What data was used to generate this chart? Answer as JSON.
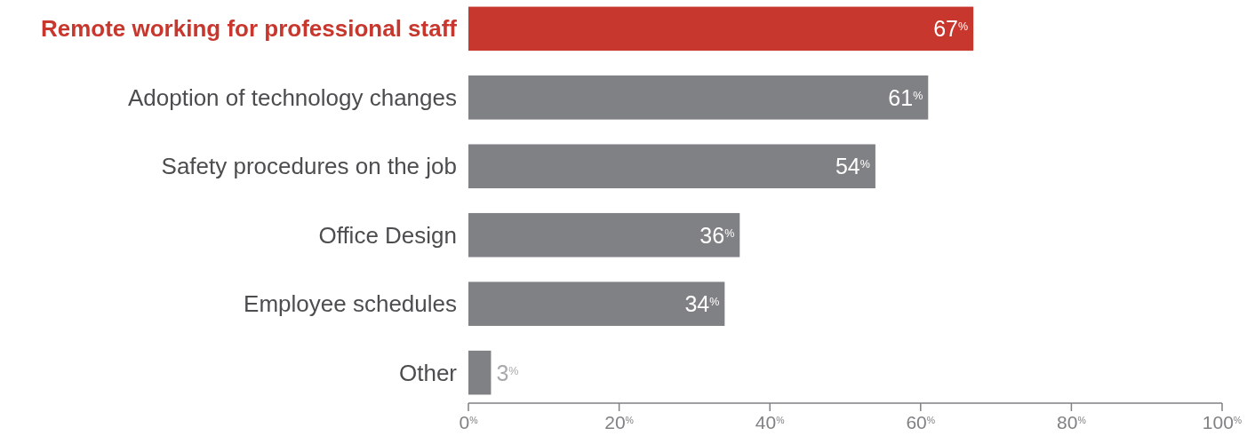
{
  "chart_data": {
    "type": "bar",
    "orientation": "horizontal",
    "categories": [
      "Remote working for professional staff",
      "Adoption of technology changes",
      "Safety procedures on the job",
      "Office Design",
      "Employee schedules",
      "Other"
    ],
    "values": [
      67,
      61,
      54,
      36,
      34,
      3
    ],
    "colors": [
      "#c8372d",
      "#808184",
      "#808184",
      "#808184",
      "#808184",
      "#808184"
    ],
    "value_labels": [
      "67$^{%}$",
      "61$^{%}$",
      "54$^{%}$",
      "36$^{%}$",
      "34$^{%}$",
      "3$^{%}$"
    ],
    "xlim": [
      0,
      100
    ],
    "xticks": [
      {
        "value": 0,
        "label": "0$^{%}$"
      },
      {
        "value": 20,
        "label": "20$^{%}$"
      },
      {
        "value": 40,
        "label": "40$^{%}$"
      },
      {
        "value": 60,
        "label": "60$^{%}$"
      },
      {
        "value": 80,
        "label": "80$^{%}$"
      },
      {
        "value": 100,
        "label": "100$^{%}$"
      }
    ],
    "grid": false
  }
}
